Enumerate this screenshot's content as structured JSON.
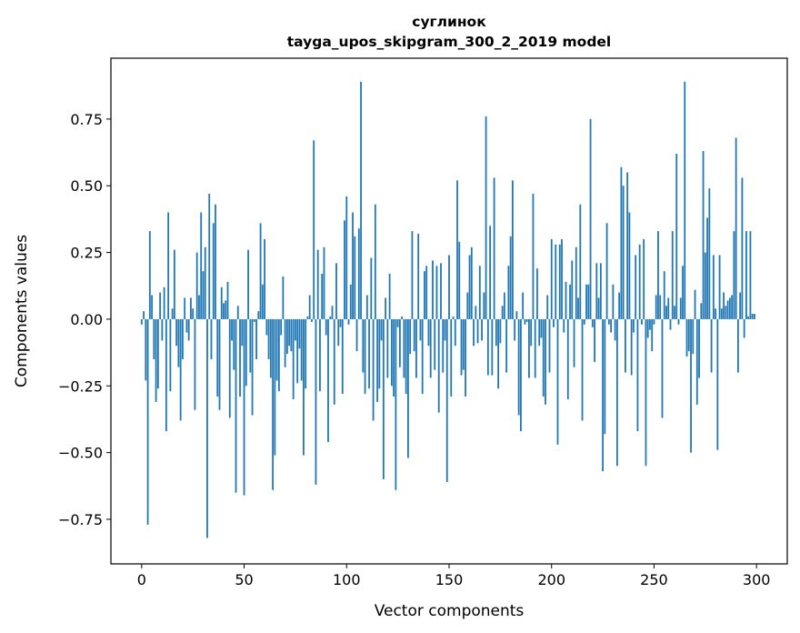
{
  "chart_data": {
    "type": "bar",
    "title_line1": "суглинок",
    "title_line2": "tayga_upos_skipgram_300_2_2019 model",
    "xlabel": "Vector components",
    "ylabel": "Components values",
    "xlim": [
      -15,
      315
    ],
    "ylim": [
      -0.917,
      0.978
    ],
    "xticks": [
      0,
      50,
      100,
      150,
      200,
      250,
      300
    ],
    "xtick_labels": [
      "0",
      "50",
      "100",
      "150",
      "200",
      "250",
      "300"
    ],
    "yticks": [
      -0.75,
      -0.5,
      -0.25,
      0,
      0.25,
      0.5,
      0.75
    ],
    "ytick_labels": [
      "−0.75",
      "−0.50",
      "−0.25",
      "0.00",
      "0.25",
      "0.50",
      "0.75"
    ],
    "bar_color": "#1f77b4",
    "grid": false,
    "values": [
      -0.02,
      0.03,
      -0.23,
      -0.77,
      0.33,
      0.09,
      -0.15,
      -0.31,
      -0.26,
      0.1,
      -0.08,
      0.12,
      -0.42,
      0.4,
      -0.27,
      0.04,
      0.26,
      -0.1,
      -0.18,
      -0.38,
      -0.15,
      0.08,
      -0.05,
      -0.08,
      0.08,
      0.04,
      -0.34,
      0.25,
      0.09,
      0.4,
      0.18,
      0.27,
      -0.82,
      0.47,
      -0.15,
      0.36,
      0.43,
      -0.29,
      -0.34,
      0.12,
      0.06,
      0.07,
      0.14,
      -0.37,
      -0.08,
      -0.19,
      -0.65,
      0.05,
      -0.29,
      -0.1,
      -0.66,
      -0.25,
      0.26,
      -0.2,
      -0.36,
      -0.01,
      -0.15,
      0.03,
      0.36,
      0.13,
      0.3,
      -0.06,
      -0.15,
      -0.22,
      -0.64,
      -0.51,
      -0.23,
      -0.27,
      -0.06,
      0.16,
      -0.18,
      -0.13,
      -0.1,
      -0.12,
      -0.3,
      -0.08,
      -0.24,
      -0.11,
      -0.23,
      -0.51,
      -0.26,
      0.01,
      0.09,
      -0.01,
      0.67,
      -0.62,
      0.26,
      -0.27,
      0.17,
      0.27,
      -0.06,
      -0.46,
      0.01,
      0.05,
      -0.32,
      0.21,
      -0.1,
      -0.03,
      -0.28,
      0.37,
      0.46,
      -0.02,
      0.13,
      0.4,
      0.31,
      -0.12,
      0.34,
      0.89,
      -0.2,
      -0.28,
      0.09,
      -0.26,
      0.23,
      -0.38,
      0.43,
      -0.31,
      -0.26,
      -0.08,
      -0.6,
      0.08,
      -0.22,
      0.17,
      -0.25,
      -0.29,
      -0.64,
      -0.03,
      -0.18,
      0.01,
      -0.22,
      -0.28,
      -0.52,
      -0.13,
      0.33,
      -0.12,
      -0.22,
      0.32,
      -0.08,
      -0.28,
      0.18,
      0.2,
      -0.1,
      -0.22,
      0.22,
      -0.19,
      0.2,
      -0.35,
      0.21,
      -0.2,
      -0.08,
      -0.61,
      0.24,
      -0.29,
      0.01,
      -0.1,
      0.52,
      0.29,
      -0.21,
      -0.19,
      -0.29,
      0.1,
      0.24,
      0.27,
      -0.1,
      0.05,
      -0.09,
      0.2,
      -0.08,
      0.1,
      0.76,
      -0.21,
      0.35,
      -0.21,
      0.53,
      -0.1,
      -0.26,
      -0.09,
      0.05,
      0.1,
      -0.2,
      0.2,
      0.31,
      0.52,
      -0.08,
      0.03,
      -0.36,
      -0.42,
      0.1,
      -0.02,
      -0.01,
      -0.22,
      -0.1,
      0.47,
      -0.22,
      0.19,
      -0.1,
      -0.07,
      -0.29,
      -0.32,
      0.09,
      -0.2,
      0.3,
      -0.03,
      0.28,
      -0.47,
      0.28,
      0.3,
      -0.05,
      0.14,
      -0.3,
      0.13,
      0.22,
      -0.18,
      0.27,
      0.08,
      0.43,
      -0.38,
      -0.02,
      0.13,
      0.13,
      0.75,
      -0.03,
      -0.16,
      0.21,
      0.08,
      0.21,
      -0.57,
      -0.43,
      0.36,
      -0.02,
      -0.05,
      0.13,
      -0.08,
      -0.55,
      0.1,
      0.57,
      0.5,
      -0.2,
      0.55,
      0.4,
      -0.21,
      -0.05,
      0.24,
      -0.42,
      0.28,
      -0.02,
      0.3,
      -0.55,
      -0.07,
      -0.04,
      -0.12,
      -0.02,
      0.09,
      0.33,
      0.09,
      -0.37,
      0.18,
      0.05,
      0.08,
      -0.04,
      0.33,
      0.05,
      0.62,
      -0.02,
      0.08,
      0.2,
      0.89,
      -0.14,
      -0.12,
      -0.5,
      -0.13,
      0.11,
      -0.32,
      -0.22,
      0.06,
      0.63,
      0.25,
      0.38,
      0.49,
      -0.2,
      0.24,
      0.04,
      -0.49,
      0.24,
      0.04,
      0.1,
      0.05,
      0.07,
      0.08,
      0.09,
      0.33,
      0.68,
      -0.2,
      0.1,
      0.53,
      -0.07,
      0.33,
      0.01,
      0.33,
      0.02,
      0.02
    ]
  }
}
